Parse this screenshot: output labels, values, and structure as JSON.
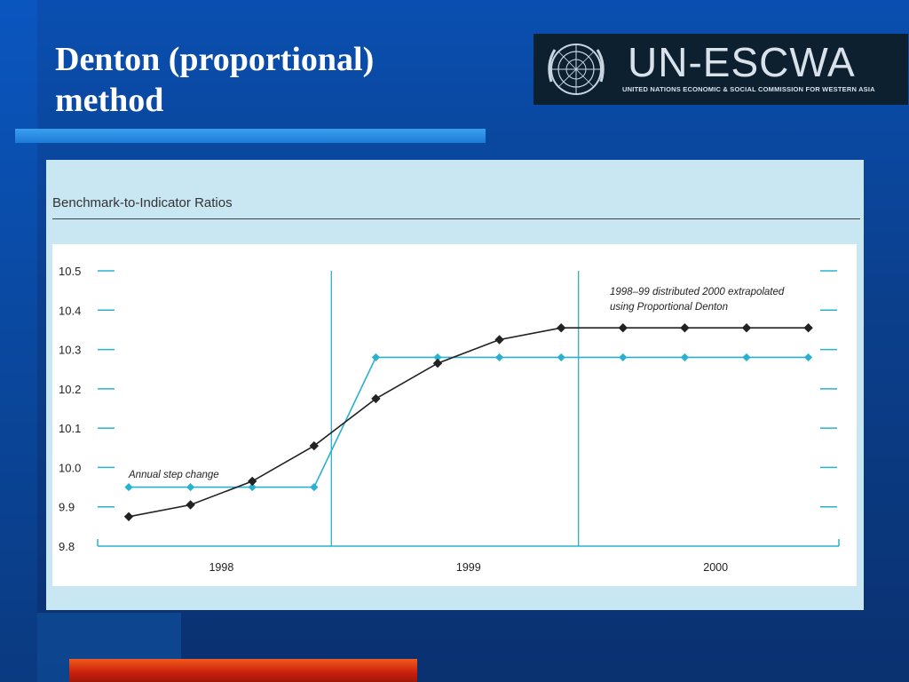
{
  "slide": {
    "title_line1": "Denton (proportional)",
    "title_line2": "method"
  },
  "logo": {
    "wordmark": "UN-ESCWA",
    "subtitle": "UNITED NATIONS ECONOMIC & SOCIAL COMMISSION FOR WESTERN ASIA"
  },
  "colors": {
    "background": "#0b3f8c",
    "title_bar": "#2a8ee6",
    "chart_frame": "#c9e6f3",
    "series_proportional": "#222222",
    "series_step": "#2ab0d0",
    "accent_bar": "#e0401a"
  },
  "chart_data": {
    "type": "line",
    "title": "Benchmark-to-Indicator Ratios",
    "xlabel": "",
    "ylabel": "",
    "ylim": [
      9.8,
      10.5
    ],
    "yticks": [
      "10.5",
      "10.4",
      "10.3",
      "10.2",
      "10.1",
      "10.0",
      "9.9",
      "9.8"
    ],
    "year_labels": [
      "1998",
      "1999",
      "2000"
    ],
    "quarters_per_year": 4,
    "grid": false,
    "series": [
      {
        "key": "denton",
        "values": [
          9.875,
          9.905,
          9.965,
          10.055,
          10.175,
          10.265,
          10.325,
          10.355,
          10.355,
          10.355,
          10.355,
          10.355
        ]
      },
      {
        "key": "step",
        "values": [
          9.95,
          9.95,
          9.95,
          9.95,
          10.28,
          10.28,
          10.28,
          10.28,
          10.28,
          10.28,
          10.28,
          10.28
        ]
      }
    ],
    "annotations": {
      "step_label": "Annual step change",
      "denton_line1": "1998–99 distributed 2000 extrapolated",
      "denton_line2": "using Proportional Denton"
    }
  }
}
